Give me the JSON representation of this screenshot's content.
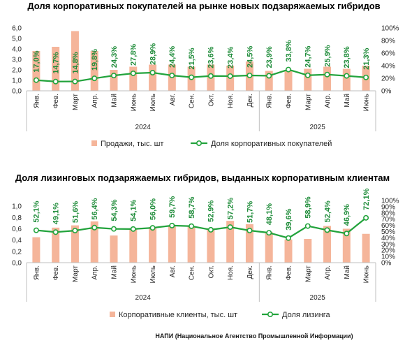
{
  "chart_data": [
    {
      "type": "bar",
      "title": "Доля корпоративных покупателей на рынке новых подзаряжаемых гибридов",
      "categories": [
        "Янв.",
        "Фев.",
        "Март",
        "Апр.",
        "Май",
        "Июнь",
        "Июль",
        "Авг.",
        "Сен.",
        "Окт.",
        "Ноя.",
        "Дек.",
        "Янв.",
        "Фев.",
        "Март",
        "Апр.",
        "Май",
        "Июнь"
      ],
      "category_groups": [
        {
          "label": "2024",
          "size": 12
        },
        {
          "label": "2025",
          "size": 6
        }
      ],
      "series": [
        {
          "name": "Продажи, тыс. шт",
          "type": "bar",
          "axis": "left",
          "color": "#f5b59a",
          "values": [
            3.8,
            4.2,
            5.7,
            3.8,
            2.0,
            2.3,
            2.5,
            2.5,
            2.3,
            2.5,
            2.4,
            2.8,
            1.9,
            1.9,
            2.1,
            2.3,
            2.1,
            2.4
          ]
        },
        {
          "name": "Доля корпоративных покупателей",
          "type": "line",
          "axis": "right",
          "color": "#22a33c",
          "label_color": "#1f8c3a",
          "values": [
            17.0,
            14.7,
            14.8,
            19.8,
            24.3,
            27.8,
            28.9,
            24.4,
            21.5,
            23.6,
            23.4,
            24.5,
            23.9,
            33.8,
            24.7,
            25.9,
            23.8,
            21.3
          ],
          "data_labels": [
            "17,0%",
            "14,7%",
            "14,8%",
            "19,8%",
            "24,3%",
            "27,8%",
            "28,9%",
            "24,4%",
            "21,5%",
            "23,6%",
            "23,4%",
            "24,5%",
            "23,9%",
            "33,8%",
            "24,7%",
            "25,9%",
            "23,8%",
            "21,3%"
          ]
        }
      ],
      "ylim": [
        0,
        6
      ],
      "yticks": [
        0,
        1,
        2,
        3,
        4,
        5,
        6
      ],
      "yticklabels": [
        "0,0",
        "1,0",
        "2,0",
        "3,0",
        "4,0",
        "5,0",
        "6,0"
      ],
      "y2lim": [
        0,
        100
      ],
      "y2ticks": [
        0,
        20,
        40,
        60,
        80,
        100
      ],
      "y2ticklabels": [
        "0%",
        "20%",
        "40%",
        "60%",
        "80%",
        "100%"
      ],
      "grid": false,
      "legend": "bottom"
    },
    {
      "type": "bar",
      "title": "Доля лизинговых подзаряжаемых гибридов, выданных корпоративным клиентам",
      "categories": [
        "Янв.",
        "Фев.",
        "Март",
        "Апр.",
        "Май",
        "Июнь",
        "Июль",
        "Авг.",
        "Сен.",
        "Окт.",
        "Ноя.",
        "Дек.",
        "Янв.",
        "Фев.",
        "Март",
        "Апр.",
        "Май",
        "Июнь"
      ],
      "category_groups": [
        {
          "label": "2024",
          "size": 12
        },
        {
          "label": "2025",
          "size": 6
        }
      ],
      "series": [
        {
          "name": "Корпоративные клиенты, тыс. шт",
          "type": "bar",
          "axis": "left",
          "color": "#f5b59a",
          "values": [
            0.45,
            0.62,
            0.66,
            0.73,
            0.48,
            0.61,
            0.63,
            0.64,
            0.65,
            0.61,
            0.74,
            0.68,
            0.54,
            0.41,
            0.42,
            0.65,
            0.6,
            0.51
          ]
        },
        {
          "name": "Доля лизинга",
          "type": "line",
          "axis": "right",
          "color": "#22a33c",
          "label_color": "#1f8c3a",
          "values": [
            52.1,
            49.1,
            51.6,
            56.4,
            54.3,
            54.1,
            56.0,
            59.7,
            58.7,
            52.9,
            57.2,
            51.7,
            48.1,
            39.6,
            58.9,
            52.4,
            46.9,
            72.1
          ],
          "data_labels": [
            "52,1%",
            "49,1%",
            "51,6%",
            "56,4%",
            "54,3%",
            "54,1%",
            "56,0%",
            "59,7%",
            "58,7%",
            "52,9%",
            "57,2%",
            "51,7%",
            "48,1%",
            "39,6%",
            "58,9%",
            "52,4%",
            "46,9%",
            "72,1%"
          ]
        }
      ],
      "ylim": [
        0,
        1.1
      ],
      "yticks": [
        0,
        0.2,
        0.4,
        0.6,
        0.8,
        1.0
      ],
      "yticklabels": [
        "0,0",
        "0,2",
        "0,4",
        "0,6",
        "0,8",
        "1,0"
      ],
      "y2lim": [
        0,
        100
      ],
      "y2ticks": [
        0,
        10,
        20,
        30,
        40,
        50,
        60,
        70,
        80,
        90,
        100
      ],
      "y2ticklabels": [
        "0%",
        "10%",
        "20%",
        "30%",
        "40%",
        "50%",
        "60%",
        "70%",
        "80%",
        "90%",
        "100%"
      ],
      "grid": false,
      "legend": "bottom"
    }
  ],
  "footer": {
    "source": "НАПИ (Национальное Агентство Промышленной Информации)"
  }
}
